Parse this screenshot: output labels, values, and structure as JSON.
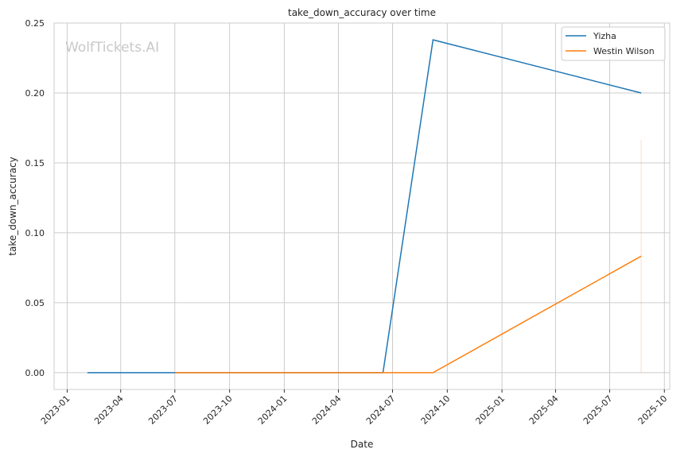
{
  "chart_data": {
    "type": "line",
    "title": "take_down_accuracy over time",
    "xlabel": "Date",
    "ylabel": "take_down_accuracy",
    "watermark": "WolfTickets.AI",
    "xlim": [
      "2022-12-10",
      "2025-10-10"
    ],
    "ylim": [
      -0.012,
      0.25
    ],
    "grid": true,
    "legend_position": "top-right",
    "x_ticks": [
      "2023-01",
      "2023-04",
      "2023-07",
      "2023-10",
      "2024-01",
      "2024-04",
      "2024-07",
      "2024-10",
      "2025-01",
      "2025-04",
      "2025-07",
      "2025-10"
    ],
    "y_ticks": [
      0.0,
      0.05,
      0.1,
      0.15,
      0.2,
      0.25
    ],
    "y_tick_labels": [
      "0.00",
      "0.05",
      "0.10",
      "0.15",
      "0.20",
      "0.25"
    ],
    "series": [
      {
        "name": "Yizha",
        "color": "#1f77b4",
        "points": [
          {
            "x": "2023-02-04",
            "y": 0.0
          },
          {
            "x": "2024-06-15",
            "y": 0.0
          },
          {
            "x": "2024-09-07",
            "y": 0.238
          },
          {
            "x": "2025-08-23",
            "y": 0.2
          }
        ]
      },
      {
        "name": "Westin Wilson",
        "color": "#ff7f0e",
        "points": [
          {
            "x": "2023-07-01",
            "y": 0.0
          },
          {
            "x": "2024-09-07",
            "y": 0.0
          },
          {
            "x": "2025-08-23",
            "y": 0.0833
          }
        ],
        "error_band": {
          "x": "2025-08-23",
          "low": 0.0,
          "high": 0.1667
        }
      }
    ]
  }
}
